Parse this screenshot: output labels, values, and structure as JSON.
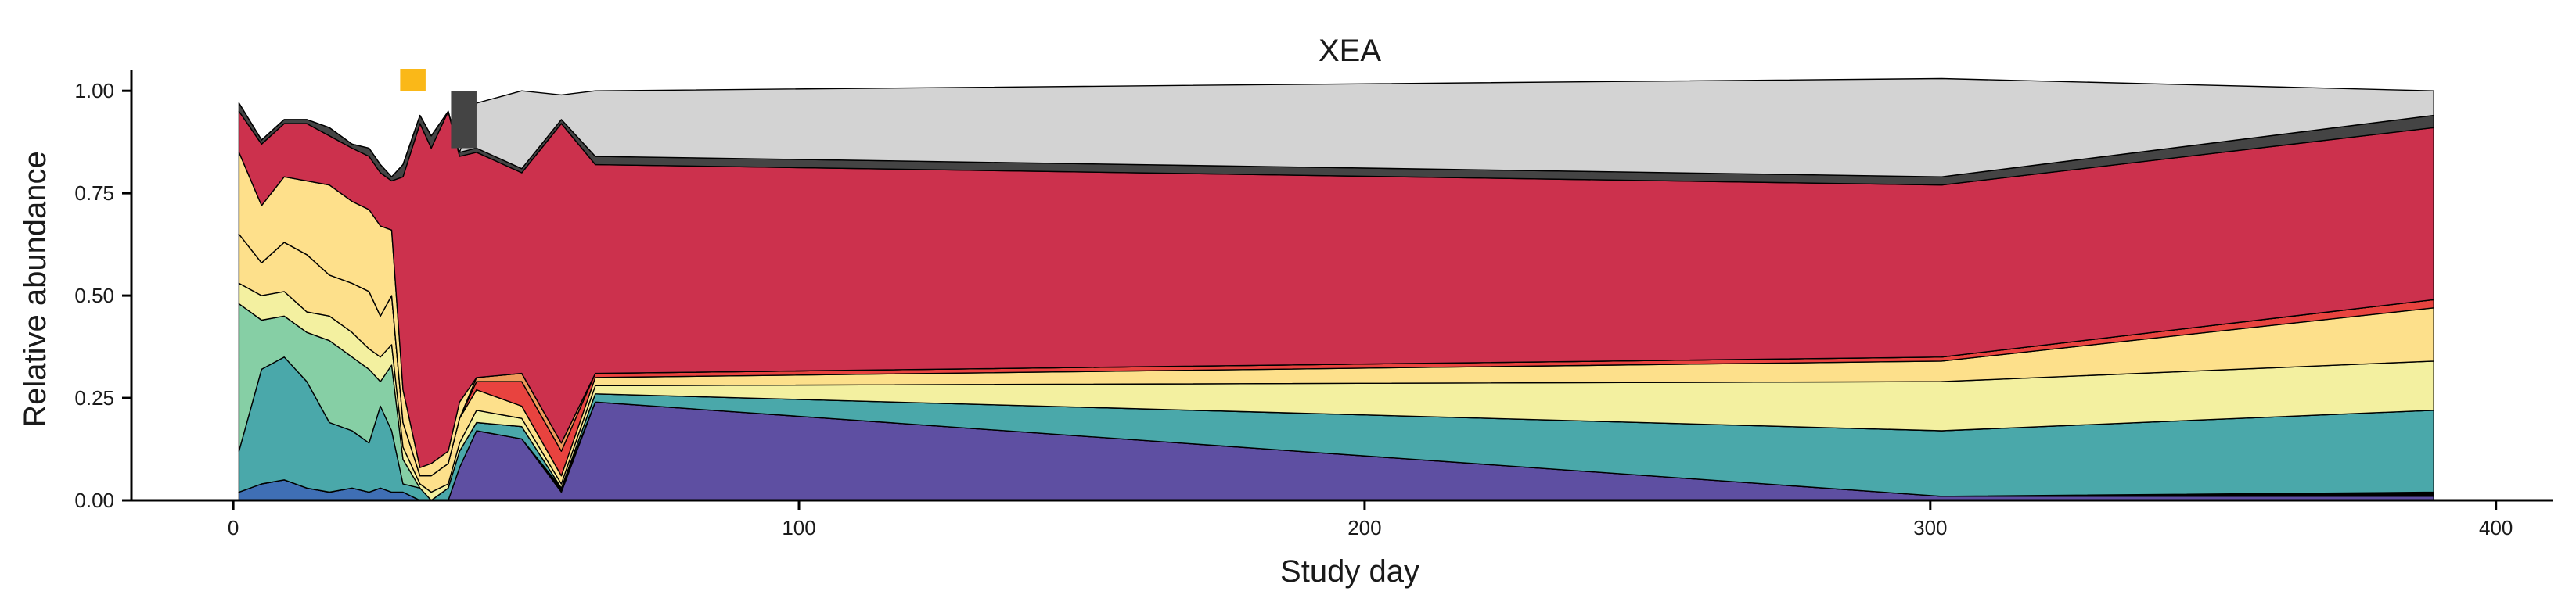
{
  "chart_data": {
    "type": "area",
    "title": "XEA",
    "xlabel": "Study day",
    "ylabel": "Relative abundance",
    "xlim": [
      -18,
      410
    ],
    "ylim": [
      0,
      1.05
    ],
    "x_ticks": [
      0,
      100,
      200,
      300,
      400
    ],
    "x_tick_labels": [
      "0",
      "100",
      "200",
      "300",
      "400"
    ],
    "y_ticks": [
      0,
      0.25,
      0.5,
      0.75,
      1.0
    ],
    "y_tick_labels": [
      "0.00",
      "0.25",
      "0.50",
      "0.75",
      "1.00"
    ],
    "grid": false,
    "legend": "none",
    "x": [
      1,
      5,
      9,
      13,
      17,
      21,
      24,
      26,
      28,
      30,
      33,
      35,
      38,
      40,
      43,
      51,
      58,
      64,
      302,
      389
    ],
    "series": [
      {
        "color": "#3f6fb5",
        "values": [
          0.02,
          0.04,
          0.05,
          0.03,
          0.02,
          0.03,
          0.02,
          0.03,
          0.02,
          0.02,
          0.0,
          0.0,
          0.0,
          0.0,
          0.0,
          0.0,
          0.0,
          0.0,
          0.0,
          0.0
        ]
      },
      {
        "color": "#5e4fa2",
        "values": [
          0.0,
          0.0,
          0.0,
          0.0,
          0.0,
          0.0,
          0.0,
          0.0,
          0.0,
          0.0,
          0.0,
          0.0,
          0.0,
          0.08,
          0.17,
          0.15,
          0.02,
          0.24,
          0.01,
          0.01
        ]
      },
      {
        "color": "#000000",
        "values": [
          0.0,
          0.0,
          0.0,
          0.0,
          0.0,
          0.0,
          0.0,
          0.0,
          0.0,
          0.0,
          0.0,
          0.0,
          0.0,
          0.0,
          0.0,
          0.0,
          0.01,
          0.0,
          0.0,
          0.01
        ]
      },
      {
        "color": "#4aa8aa",
        "values": [
          0.1,
          0.28,
          0.3,
          0.26,
          0.17,
          0.14,
          0.12,
          0.2,
          0.15,
          0.02,
          0.03,
          0.0,
          0.03,
          0.04,
          0.02,
          0.03,
          0.0,
          0.02,
          0.16,
          0.2
        ]
      },
      {
        "color": "#86cfa5",
        "values": [
          0.36,
          0.12,
          0.1,
          0.12,
          0.2,
          0.18,
          0.18,
          0.06,
          0.16,
          0.06,
          0.0,
          0.0,
          0.0,
          0.0,
          0.0,
          0.0,
          0.0,
          0.0,
          0.0,
          0.0
        ]
      },
      {
        "color": "#f3f0a0",
        "values": [
          0.05,
          0.06,
          0.06,
          0.05,
          0.06,
          0.06,
          0.05,
          0.06,
          0.05,
          0.03,
          0.01,
          0.02,
          0.01,
          0.02,
          0.03,
          0.02,
          0.01,
          0.02,
          0.12,
          0.12
        ]
      },
      {
        "color": "#fde08b",
        "values": [
          0.12,
          0.08,
          0.12,
          0.14,
          0.1,
          0.12,
          0.14,
          0.1,
          0.12,
          0.06,
          0.02,
          0.04,
          0.05,
          0.06,
          0.05,
          0.03,
          0.02,
          0.02,
          0.05,
          0.13
        ]
      },
      {
        "color": "#e8433f",
        "values": [
          0.0,
          0.0,
          0.0,
          0.0,
          0.0,
          0.0,
          0.0,
          0.0,
          0.0,
          0.0,
          0.0,
          0.0,
          0.0,
          0.0,
          0.02,
          0.06,
          0.06,
          0.01,
          0.01,
          0.02
        ]
      },
      {
        "color": "#ef9a5b",
        "values": [
          0.0,
          0.0,
          0.0,
          0.0,
          0.0,
          0.0,
          0.0,
          0.0,
          0.0,
          0.0,
          0.0,
          0.0,
          0.0,
          0.0,
          0.01,
          0.02,
          0.02,
          0.0,
          0.0,
          0.0
        ]
      },
      {
        "color": "#fee08b",
        "values": [
          0.2,
          0.14,
          0.16,
          0.18,
          0.22,
          0.2,
          0.2,
          0.22,
          0.16,
          0.08,
          0.02,
          0.03,
          0.03,
          0.04,
          0.0,
          0.0,
          0.0,
          0.0,
          0.0,
          0.0
        ]
      },
      {
        "color": "#cc314d",
        "values": [
          0.1,
          0.15,
          0.13,
          0.14,
          0.12,
          0.13,
          0.13,
          0.13,
          0.12,
          0.52,
          0.84,
          0.77,
          0.83,
          0.6,
          0.55,
          0.49,
          0.78,
          0.51,
          0.42,
          0.42
        ]
      },
      {
        "color": "#444444",
        "values": [
          0.02,
          0.01,
          0.01,
          0.01,
          0.02,
          0.01,
          0.02,
          0.02,
          0.01,
          0.03,
          0.02,
          0.03,
          0.0,
          0.01,
          0.01,
          0.01,
          0.01,
          0.02,
          0.02,
          0.03
        ]
      },
      {
        "color": "#d3d3d3",
        "values": [
          0.0,
          0.0,
          0.0,
          0.0,
          0.0,
          0.0,
          0.0,
          0.0,
          0.0,
          0.0,
          0.0,
          0.0,
          0.0,
          0.0,
          0.11,
          0.19,
          0.06,
          0.16,
          0.24,
          0.06
        ]
      }
    ],
    "highlight_bars": [
      {
        "x_start": 29.5,
        "x_end": 34,
        "color": "#fab818"
      },
      {
        "x_start": 38.5,
        "x_end": 43,
        "color": "#444444"
      }
    ]
  }
}
